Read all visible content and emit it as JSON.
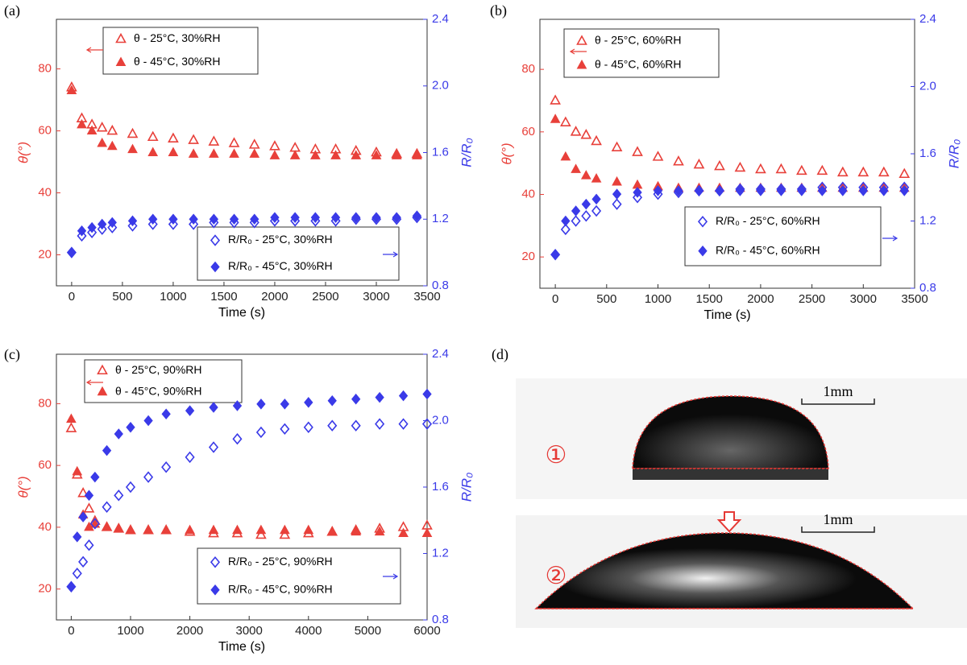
{
  "chart_data": [
    {
      "type": "scatter",
      "panel": "(a)",
      "xlabel": "Time (s)",
      "ylabel": "θ(°)",
      "y2label": "R/R₀",
      "xlim": [
        -150,
        3500
      ],
      "xticks": [
        0,
        500,
        1000,
        1500,
        2000,
        2500,
        3000,
        3500
      ],
      "ylim": [
        10,
        96
      ],
      "yticks": [
        20,
        40,
        60,
        80
      ],
      "y2lim": [
        0.8,
        2.4
      ],
      "y2ticks": [
        0.8,
        1.2,
        1.6,
        2.0,
        2.4
      ],
      "x": [
        0,
        100,
        200,
        300,
        400,
        600,
        800,
        1000,
        1200,
        1400,
        1600,
        1800,
        2000,
        2200,
        2400,
        2600,
        2800,
        3000,
        3200,
        3400
      ],
      "series": [
        {
          "name": "θ - 25°C, 30%RH",
          "color": "#e8403a",
          "marker": "triangle-open",
          "values": [
            74,
            64,
            62,
            61,
            60,
            59,
            58,
            57.5,
            57,
            56.5,
            56,
            55.5,
            55,
            54.5,
            54,
            54,
            53.5,
            53,
            52.5,
            52.5
          ]
        },
        {
          "name": "θ - 45°C, 30%RH",
          "color": "#e8403a",
          "marker": "triangle",
          "values": [
            73,
            62,
            60,
            56,
            55,
            54,
            53,
            53,
            52.5,
            52.5,
            52.5,
            52.5,
            52,
            52,
            52,
            52,
            52,
            52,
            52,
            52
          ]
        },
        {
          "name": "R/R₀ - 25°C, 30%RH",
          "color": "#3a3ae8",
          "marker": "diamond-open",
          "axis": "y2",
          "values": [
            1.0,
            1.1,
            1.12,
            1.14,
            1.15,
            1.16,
            1.17,
            1.17,
            1.17,
            1.18,
            1.18,
            1.18,
            1.19,
            1.19,
            1.19,
            1.19,
            1.2,
            1.2,
            1.2,
            1.21
          ]
        },
        {
          "name": "R/R₀ - 45°C, 30%RH",
          "color": "#3a3ae8",
          "marker": "diamond",
          "axis": "y2",
          "values": [
            1.0,
            1.13,
            1.15,
            1.17,
            1.18,
            1.19,
            1.2,
            1.2,
            1.2,
            1.2,
            1.2,
            1.2,
            1.21,
            1.21,
            1.21,
            1.21,
            1.21,
            1.21,
            1.21,
            1.22
          ]
        }
      ]
    },
    {
      "type": "scatter",
      "panel": "(b)",
      "xlabel": "Time (s)",
      "ylabel": "θ(°)",
      "y2label": "R/R₀",
      "xlim": [
        -150,
        3500
      ],
      "xticks": [
        0,
        500,
        1000,
        1500,
        2000,
        2500,
        3000,
        3500
      ],
      "ylim": [
        10,
        96
      ],
      "yticks": [
        20,
        40,
        60,
        80
      ],
      "y2lim": [
        0.8,
        2.4
      ],
      "y2ticks": [
        0.8,
        1.2,
        1.6,
        2.0,
        2.4
      ],
      "x": [
        0,
        100,
        200,
        300,
        400,
        600,
        800,
        1000,
        1200,
        1400,
        1600,
        1800,
        2000,
        2200,
        2400,
        2600,
        2800,
        3000,
        3200,
        3400
      ],
      "series": [
        {
          "name": "θ - 25°C, 60%RH",
          "color": "#e8403a",
          "marker": "triangle-open",
          "values": [
            70,
            63,
            60,
            59,
            57,
            55,
            53.5,
            52,
            50.5,
            49.5,
            49,
            48.5,
            48,
            48,
            47.5,
            47.5,
            47,
            47,
            47,
            46.5
          ]
        },
        {
          "name": "θ - 45°C, 60%RH",
          "color": "#e8403a",
          "marker": "triangle",
          "values": [
            64,
            52,
            48,
            46,
            45,
            44,
            43,
            42.5,
            42,
            42,
            42,
            42,
            42,
            42,
            42,
            42,
            42,
            42,
            42,
            42
          ]
        },
        {
          "name": "R/R₀ - 25°C, 60%RH",
          "color": "#3a3ae8",
          "marker": "diamond-open",
          "axis": "y2",
          "values": [
            1.0,
            1.15,
            1.2,
            1.23,
            1.26,
            1.3,
            1.34,
            1.36,
            1.37,
            1.38,
            1.38,
            1.39,
            1.39,
            1.39,
            1.39,
            1.4,
            1.4,
            1.4,
            1.4,
            1.4
          ]
        },
        {
          "name": "R/R₀ - 45°C, 60%RH",
          "color": "#3a3ae8",
          "marker": "diamond",
          "axis": "y2",
          "values": [
            1.0,
            1.2,
            1.26,
            1.3,
            1.33,
            1.36,
            1.37,
            1.38,
            1.38,
            1.38,
            1.38,
            1.38,
            1.38,
            1.38,
            1.38,
            1.38,
            1.38,
            1.38,
            1.38,
            1.38
          ]
        }
      ]
    },
    {
      "type": "scatter",
      "panel": "(c)",
      "xlabel": "Time (s)",
      "ylabel": "θ(°)",
      "y2label": "R/R₀",
      "xlim": [
        -250,
        6000
      ],
      "xticks": [
        0,
        1000,
        2000,
        3000,
        4000,
        5000,
        6000
      ],
      "ylim": [
        10,
        96
      ],
      "yticks": [
        20,
        40,
        60,
        80
      ],
      "y2lim": [
        0.8,
        2.4
      ],
      "y2ticks": [
        0.8,
        1.2,
        1.6,
        2.0,
        2.4
      ],
      "x": [
        0,
        100,
        200,
        300,
        400,
        600,
        800,
        1000,
        1300,
        1600,
        2000,
        2400,
        2800,
        3200,
        3600,
        4000,
        4400,
        4800,
        5200,
        5600,
        6000
      ],
      "series": [
        {
          "name": "θ - 25°C, 90%RH",
          "color": "#e8403a",
          "marker": "triangle-open",
          "values": [
            72,
            57,
            51,
            46,
            42,
            40,
            39.5,
            39,
            39,
            39,
            38.5,
            38,
            38,
            37.5,
            37.5,
            38,
            38.5,
            39,
            39.5,
            40,
            40.5
          ]
        },
        {
          "name": "θ - 45°C, 90%RH",
          "color": "#e8403a",
          "marker": "triangle",
          "values": [
            75,
            58,
            44,
            40,
            41,
            40,
            39.5,
            39,
            39,
            39,
            39,
            39,
            39,
            39,
            39,
            39,
            38.5,
            38.5,
            38.5,
            38,
            38
          ]
        },
        {
          "name": "R/R₀ - 25°C, 90%RH",
          "color": "#3a3ae8",
          "marker": "diamond-open",
          "axis": "y2",
          "values": [
            1.0,
            1.08,
            1.15,
            1.25,
            1.38,
            1.48,
            1.55,
            1.6,
            1.66,
            1.72,
            1.78,
            1.84,
            1.89,
            1.93,
            1.95,
            1.96,
            1.97,
            1.97,
            1.98,
            1.98,
            1.98
          ]
        },
        {
          "name": "R/R₀ - 45°C, 90%RH",
          "color": "#3a3ae8",
          "marker": "diamond",
          "axis": "y2",
          "values": [
            1.0,
            1.3,
            1.42,
            1.55,
            1.66,
            1.82,
            1.92,
            1.96,
            2.0,
            2.04,
            2.06,
            2.08,
            2.09,
            2.1,
            2.1,
            2.11,
            2.12,
            2.13,
            2.14,
            2.15,
            2.16
          ]
        }
      ]
    }
  ],
  "panel_d": {
    "label": "(d)",
    "steps": [
      "①",
      "②"
    ],
    "scales": [
      "1mm",
      "1mm"
    ]
  }
}
